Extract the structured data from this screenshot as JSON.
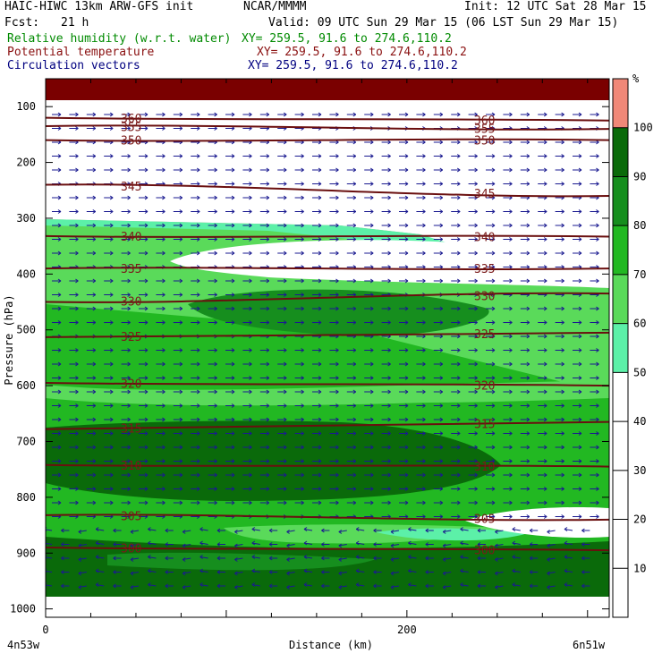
{
  "header": {
    "title": "HAIC-HIWC 13km ARW-GFS init",
    "org": "NCAR/MMMM",
    "init": "Init: 12 UTC Sat 28 Mar 15",
    "fcst_label": "Fcst:",
    "fcst_value": "21 h",
    "valid": "Valid: 09 UTC Sun 29 Mar 15 (06 LST Sun 29 Mar 15)",
    "fields": [
      {
        "name": "Relative humidity (w.r.t. water)",
        "xy": "XY= 259.5, 91.6 to 274.6,110.2",
        "color": "#008a00"
      },
      {
        "name": "Potential temperature",
        "xy": "XY= 259.5, 91.6 to 274.6,110.2",
        "color": "#8a1010"
      },
      {
        "name": "Circulation vectors",
        "xy": "XY= 259.5, 91.6 to 274.6,110.2",
        "color": "#000080"
      }
    ]
  },
  "chart_data": {
    "type": "heatmap",
    "title": "",
    "xlabel": "Distance (km)",
    "ylabel": "Pressure (hPa)",
    "xlim": [
      0,
      312
    ],
    "ylim": [
      1015,
      50
    ],
    "x_ticks": [
      0,
      200
    ],
    "y_ticks": [
      100,
      200,
      300,
      400,
      500,
      600,
      700,
      800,
      900,
      1000
    ],
    "x_endpoint_labels": {
      "left": "4n53w",
      "right": "6n51w"
    },
    "colorbar": {
      "unit": "%",
      "ticks": [
        10,
        20,
        30,
        40,
        50,
        60,
        70,
        80,
        90,
        100
      ],
      "colors": {
        "50-60": "#5cf0a8",
        "60-70": "#5ada5a",
        "70-80": "#22b822",
        "80-90": "#168e1e",
        "90-100": "#0a6a0a",
        "100+": "#f08878"
      }
    },
    "rh_zones": [
      {
        "p_range": [
          50,
          90
        ],
        "rh": ">100",
        "color": "#7a0000"
      },
      {
        "p_range": [
          90,
          330
        ],
        "rh": "<50",
        "color": "#ffffff"
      },
      {
        "p_range": [
          330,
          440
        ],
        "rh": "50-70",
        "color": "#5ada5a"
      },
      {
        "p_range": [
          440,
          700
        ],
        "rh": "60-80",
        "color": "#22b822"
      },
      {
        "p_range": [
          700,
          880
        ],
        "rh": "80-100",
        "color": "#0a6a0a"
      },
      {
        "p_range": [
          880,
          1000
        ],
        "rh": "70-100",
        "color": "#168e1e"
      }
    ],
    "theta_contours": [
      {
        "value": 360,
        "label": "360",
        "p_left": 120,
        "p_right": 125
      },
      {
        "value": 355,
        "label": "355",
        "p_left": 135,
        "p_right": 140
      },
      {
        "value": 350,
        "label": "350",
        "p_left": 160,
        "p_right": 160
      },
      {
        "value": 345,
        "label": "345",
        "p_left": 240,
        "p_right": 260
      },
      {
        "value": 340,
        "label": "340",
        "p_left": 332,
        "p_right": 333
      },
      {
        "value": 335,
        "label": "335",
        "p_left": 390,
        "p_right": 390
      },
      {
        "value": 330,
        "label": "330",
        "p_left": 450,
        "p_right": 435
      },
      {
        "value": 325,
        "label": "325",
        "p_left": 513,
        "p_right": 505
      },
      {
        "value": 320,
        "label": "320",
        "p_left": 595,
        "p_right": 600
      },
      {
        "value": 315,
        "label": "315",
        "p_left": 678,
        "p_right": 665
      },
      {
        "value": 310,
        "label": "310",
        "p_left": 742,
        "p_right": 745
      },
      {
        "value": 305,
        "label": "305",
        "p_left": 832,
        "p_right": 840
      },
      {
        "value": 300,
        "label": "300",
        "p_left": 890,
        "p_right": 895
      }
    ],
    "grid": false,
    "legend": "right colorbar"
  }
}
